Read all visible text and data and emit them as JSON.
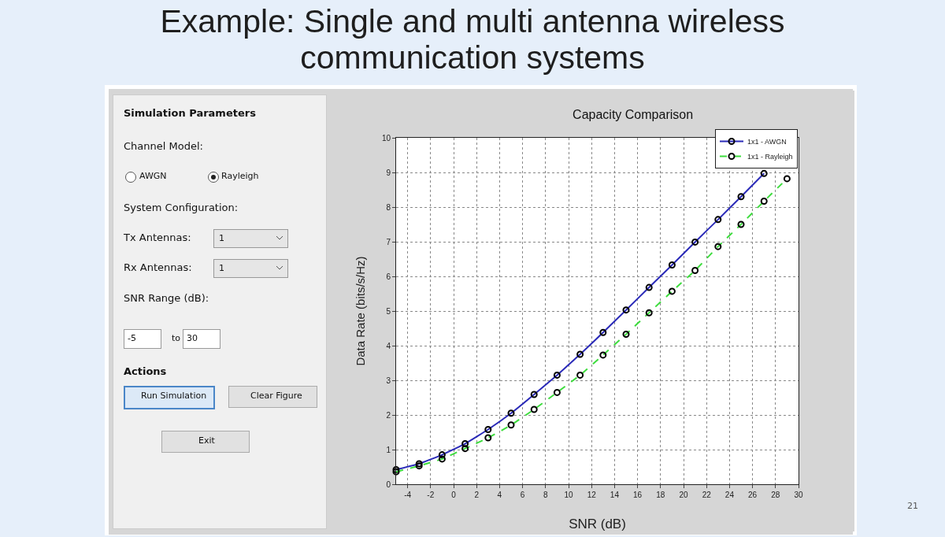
{
  "chart_data": [
    {
      "type": "other",
      "title": "Example: Single and multi antenna wireless communication systems",
      "annotations": [
        "Simulation Parameters",
        "Channel Model:",
        "AWGN",
        "Rayleigh",
        "System Configuration:",
        "Tx Antennas:",
        "1",
        "Rx Antennas:",
        "1",
        "SNR Range (dB):",
        "-5",
        "to",
        "30",
        "Actions",
        "Run Simulation",
        "Clear Figure",
        "Exit",
        "21"
      ]
    },
    {
      "type": "line",
      "title": "Capacity Comparison",
      "xlabel": "SNR (dB)",
      "ylabel": "Data Rate (bits/s/Hz)",
      "x": [
        -5,
        -3,
        -1,
        1,
        3,
        5,
        7,
        9,
        11,
        13,
        15,
        17,
        19,
        21,
        23,
        25,
        27,
        29
      ],
      "series": [
        {
          "name": "1x1 - AWGN",
          "color": "#2a2ab8",
          "line_style": "solid",
          "values": [
            0.42,
            0.59,
            0.85,
            1.17,
            1.58,
            2.05,
            2.59,
            3.15,
            3.75,
            4.38,
            5.03,
            5.68,
            6.33,
            6.99,
            7.64,
            8.3,
            8.97,
            null
          ]
        },
        {
          "name": "1x1 - Rayleigh",
          "color": "#3ddc3d",
          "line_style": "dashed",
          "values": [
            0.36,
            0.53,
            0.73,
            1.03,
            1.34,
            1.71,
            2.16,
            2.65,
            3.15,
            3.73,
            4.33,
            4.95,
            5.57,
            6.17,
            6.86,
            7.5,
            8.17,
            8.82
          ]
        }
      ],
      "xlim": [
        -5,
        30
      ],
      "xticks": [
        -4,
        -2,
        0,
        2,
        4,
        6,
        8,
        10,
        12,
        14,
        16,
        18,
        20,
        22,
        24,
        26,
        28,
        30
      ],
      "ylim": [
        0,
        10
      ],
      "yticks": [
        0,
        1,
        2,
        3,
        4,
        5,
        6,
        7,
        8,
        9,
        10
      ],
      "grid": true,
      "legend": "top right",
      "marker": "circle"
    }
  ]
}
